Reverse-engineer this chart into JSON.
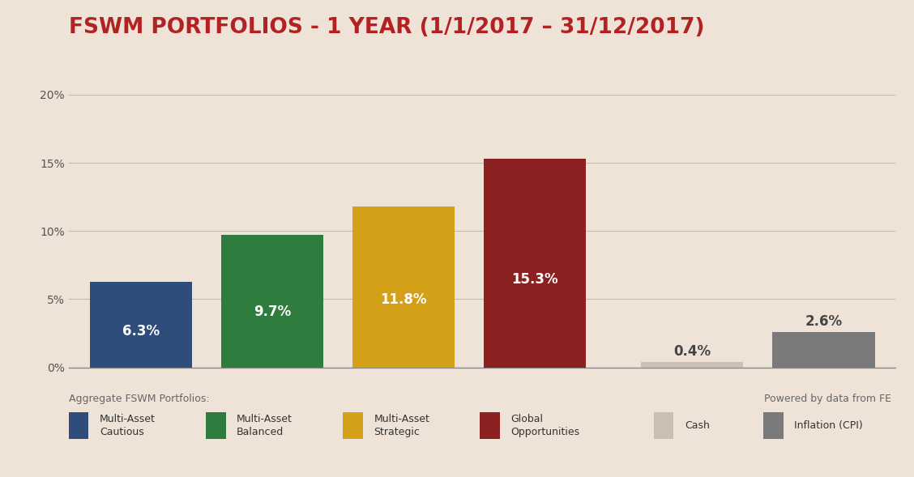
{
  "title": "FSWM PORTFOLIOS - 1 YEAR (1/1/2017 – 31/12/2017)",
  "title_color": "#B22222",
  "background_color": "#EFE3D8",
  "plot_background_color": "#EFE3D8",
  "categories": [
    "Multi-Asset\nCautious",
    "Multi-Asset\nBalanced",
    "Multi-Asset\nStrategic",
    "Global\nOpportunities",
    "Cash",
    "Inflation (CPI)"
  ],
  "values": [
    6.3,
    9.7,
    11.8,
    15.3,
    0.4,
    2.6
  ],
  "bar_colors": [
    "#2E4D7B",
    "#2E7D3E",
    "#D4A017",
    "#8B2020",
    "#CBBFB4",
    "#7A7A7A"
  ],
  "label_colors": [
    "#FFFFFF",
    "#FFFFFF",
    "#FFFFFF",
    "#FFFFFF",
    "#555555",
    "#555555"
  ],
  "label_inside": [
    true,
    true,
    true,
    true,
    false,
    false
  ],
  "ylim": [
    0,
    21
  ],
  "yticks": [
    0,
    5,
    10,
    15,
    20
  ],
  "yticklabels": [
    "0%",
    "5%",
    "10%",
    "15%",
    "20%"
  ],
  "grid_color": "#C8BAB0",
  "axis_line_color": "#888888",
  "footer_left": "Aggregate FSWM Portfolios:",
  "footer_right": "Powered by data from FE",
  "legend_labels": [
    "Multi-Asset\nCautious",
    "Multi-Asset\nBalanced",
    "Multi-Asset\nStrategic",
    "Global\nOpportunities",
    "Cash",
    "Inflation (CPI)"
  ],
  "legend_colors": [
    "#2E4D7B",
    "#2E7D3E",
    "#D4A017",
    "#8B2020",
    "#CBBFB4",
    "#7A7A7A"
  ],
  "title_fontsize": 19,
  "bar_label_fontsize": 12,
  "tick_fontsize": 10,
  "footer_fontsize": 9,
  "legend_fontsize": 9,
  "bar_width": 0.78,
  "x_positions": [
    0,
    1,
    2,
    3,
    4.2,
    5.2
  ],
  "xlim": [
    -0.55,
    5.75
  ]
}
